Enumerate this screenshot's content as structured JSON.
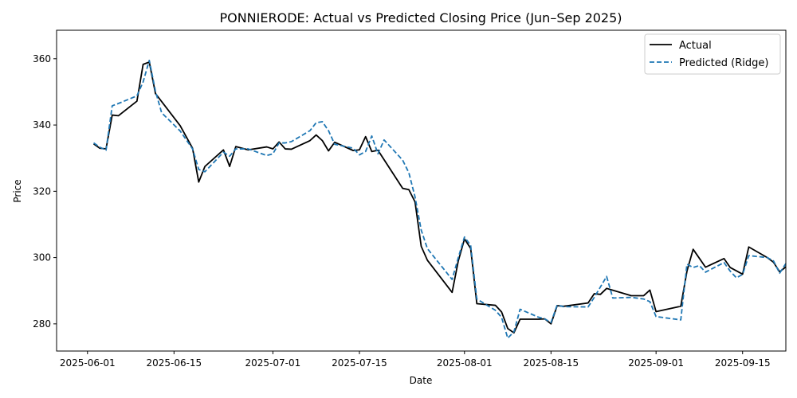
{
  "chart_data": {
    "type": "line",
    "title": "PONNIERODE: Actual vs Predicted Closing Price (Jun–Sep 2025)",
    "xlabel": "Date",
    "ylabel": "Price",
    "xlim": [
      "2025-05-27",
      "2025-09-22"
    ],
    "ylim": [
      271.8,
      368.6
    ],
    "x_ticks": [
      "2025-06-01",
      "2025-06-15",
      "2025-07-01",
      "2025-07-15",
      "2025-08-01",
      "2025-08-15",
      "2025-09-01",
      "2025-09-15"
    ],
    "y_ticks": [
      280,
      300,
      320,
      340,
      360
    ],
    "grid": false,
    "legend": "top-right",
    "series": [
      {
        "name": "Actual",
        "color": "#000000",
        "style": "solid",
        "points": [
          [
            "2025-06-02",
            334.3
          ],
          [
            "2025-06-03",
            333.0
          ],
          [
            "2025-06-04",
            332.8
          ],
          [
            "2025-06-05",
            343.0
          ],
          [
            "2025-06-06",
            342.8
          ],
          [
            "2025-06-09",
            347.2
          ],
          [
            "2025-06-10",
            358.3
          ],
          [
            "2025-06-11",
            359.0
          ],
          [
            "2025-06-12",
            349.5
          ],
          [
            "2025-06-16",
            339.8
          ],
          [
            "2025-06-18",
            333.0
          ],
          [
            "2025-06-19",
            322.8
          ],
          [
            "2025-06-20",
            327.5
          ],
          [
            "2025-06-23",
            332.5
          ],
          [
            "2025-06-24",
            327.5
          ],
          [
            "2025-06-25",
            333.5
          ],
          [
            "2025-06-27",
            332.5
          ],
          [
            "2025-06-30",
            333.4
          ],
          [
            "2025-07-01",
            332.8
          ],
          [
            "2025-07-02",
            334.9
          ],
          [
            "2025-07-03",
            332.8
          ],
          [
            "2025-07-04",
            332.7
          ],
          [
            "2025-07-07",
            335.3
          ],
          [
            "2025-07-08",
            337.0
          ],
          [
            "2025-07-09",
            335.3
          ],
          [
            "2025-07-10",
            332.2
          ],
          [
            "2025-07-11",
            334.8
          ],
          [
            "2025-07-14",
            332.3
          ],
          [
            "2025-07-15",
            332.5
          ],
          [
            "2025-07-16",
            336.5
          ],
          [
            "2025-07-17",
            332.0
          ],
          [
            "2025-07-18",
            332.4
          ],
          [
            "2025-07-22",
            320.9
          ],
          [
            "2025-07-23",
            320.5
          ],
          [
            "2025-07-24",
            316.8
          ],
          [
            "2025-07-25",
            303.4
          ],
          [
            "2025-07-26",
            299.2
          ],
          [
            "2025-07-30",
            289.5
          ],
          [
            "2025-07-31",
            299.0
          ],
          [
            "2025-08-01",
            305.6
          ],
          [
            "2025-08-02",
            302.8
          ],
          [
            "2025-08-03",
            286.1
          ],
          [
            "2025-08-06",
            285.6
          ],
          [
            "2025-08-07",
            283.6
          ],
          [
            "2025-08-08",
            278.6
          ],
          [
            "2025-08-09",
            277.3
          ],
          [
            "2025-08-10",
            281.4
          ],
          [
            "2025-08-13",
            281.4
          ],
          [
            "2025-08-14",
            281.5
          ],
          [
            "2025-08-15",
            280.0
          ],
          [
            "2025-08-16",
            285.5
          ],
          [
            "2025-08-17",
            285.3
          ],
          [
            "2025-08-21",
            286.3
          ],
          [
            "2025-08-22",
            289.1
          ],
          [
            "2025-08-23",
            288.9
          ],
          [
            "2025-08-24",
            290.7
          ],
          [
            "2025-08-28",
            288.5
          ],
          [
            "2025-08-30",
            288.5
          ],
          [
            "2025-08-31",
            290.2
          ],
          [
            "2025-09-01",
            283.7
          ],
          [
            "2025-09-05",
            285.3
          ],
          [
            "2025-09-06",
            295.9
          ],
          [
            "2025-09-07",
            302.5
          ],
          [
            "2025-09-09",
            297.1
          ],
          [
            "2025-09-12",
            299.7
          ],
          [
            "2025-09-13",
            297.0
          ],
          [
            "2025-09-15",
            295.0
          ],
          [
            "2025-09-16",
            303.2
          ],
          [
            "2025-09-19",
            300.0
          ],
          [
            "2025-09-20",
            298.6
          ],
          [
            "2025-09-21",
            295.7
          ],
          [
            "2025-09-22",
            297.2
          ]
        ]
      },
      {
        "name": "Predicted (Ridge)",
        "color": "#1f77b4",
        "style": "dashed",
        "points": [
          [
            "2025-06-02",
            334.6
          ],
          [
            "2025-06-03",
            333.3
          ],
          [
            "2025-06-04",
            332.4
          ],
          [
            "2025-06-05",
            345.8
          ],
          [
            "2025-06-06",
            346.5
          ],
          [
            "2025-06-09",
            348.8
          ],
          [
            "2025-06-10",
            353.0
          ],
          [
            "2025-06-11",
            359.5
          ],
          [
            "2025-06-12",
            350.2
          ],
          [
            "2025-06-13",
            343.7
          ],
          [
            "2025-06-16",
            338.2
          ],
          [
            "2025-06-18",
            332.8
          ],
          [
            "2025-06-19",
            326.6
          ],
          [
            "2025-06-20",
            325.9
          ],
          [
            "2025-06-23",
            331.8
          ],
          [
            "2025-06-24",
            330.6
          ],
          [
            "2025-06-25",
            332.8
          ],
          [
            "2025-06-27",
            332.8
          ],
          [
            "2025-06-30",
            330.8
          ],
          [
            "2025-07-01",
            331.3
          ],
          [
            "2025-07-02",
            334.6
          ],
          [
            "2025-07-03",
            334.6
          ],
          [
            "2025-07-04",
            335.0
          ],
          [
            "2025-07-07",
            338.3
          ],
          [
            "2025-07-08",
            340.7
          ],
          [
            "2025-07-09",
            341.0
          ],
          [
            "2025-07-10",
            338.3
          ],
          [
            "2025-07-11",
            334.2
          ],
          [
            "2025-07-14",
            333.0
          ],
          [
            "2025-07-15",
            331.0
          ],
          [
            "2025-07-16",
            332.0
          ],
          [
            "2025-07-17",
            336.7
          ],
          [
            "2025-07-18",
            331.3
          ],
          [
            "2025-07-19",
            335.5
          ],
          [
            "2025-07-22",
            329.4
          ],
          [
            "2025-07-23",
            325.6
          ],
          [
            "2025-07-24",
            318.3
          ],
          [
            "2025-07-25",
            308.3
          ],
          [
            "2025-07-26",
            302.7
          ],
          [
            "2025-07-30",
            293.4
          ],
          [
            "2025-07-31",
            300.0
          ],
          [
            "2025-08-01",
            306.2
          ],
          [
            "2025-08-02",
            303.7
          ],
          [
            "2025-08-03",
            287.5
          ],
          [
            "2025-08-06",
            284.1
          ],
          [
            "2025-08-07",
            282.0
          ],
          [
            "2025-08-08",
            275.7
          ],
          [
            "2025-08-09",
            277.6
          ],
          [
            "2025-08-10",
            284.4
          ],
          [
            "2025-08-13",
            282.0
          ],
          [
            "2025-08-14",
            281.5
          ],
          [
            "2025-08-15",
            280.4
          ],
          [
            "2025-08-16",
            285.7
          ],
          [
            "2025-08-17",
            285.2
          ],
          [
            "2025-08-21",
            285.1
          ],
          [
            "2025-08-22",
            288.0
          ],
          [
            "2025-08-24",
            294.3
          ],
          [
            "2025-08-25",
            287.8
          ],
          [
            "2025-08-28",
            288.0
          ],
          [
            "2025-08-30",
            287.5
          ],
          [
            "2025-08-31",
            286.7
          ],
          [
            "2025-09-01",
            282.2
          ],
          [
            "2025-09-05",
            281.2
          ],
          [
            "2025-09-06",
            298.0
          ],
          [
            "2025-09-07",
            297.0
          ],
          [
            "2025-09-08",
            297.6
          ],
          [
            "2025-09-09",
            295.6
          ],
          [
            "2025-09-12",
            298.5
          ],
          [
            "2025-09-13",
            295.9
          ],
          [
            "2025-09-14",
            293.9
          ],
          [
            "2025-09-15",
            294.9
          ],
          [
            "2025-09-16",
            300.6
          ],
          [
            "2025-09-19",
            300.0
          ],
          [
            "2025-09-20",
            299.0
          ],
          [
            "2025-09-21",
            295.3
          ],
          [
            "2025-09-22",
            298.2
          ]
        ]
      }
    ]
  }
}
